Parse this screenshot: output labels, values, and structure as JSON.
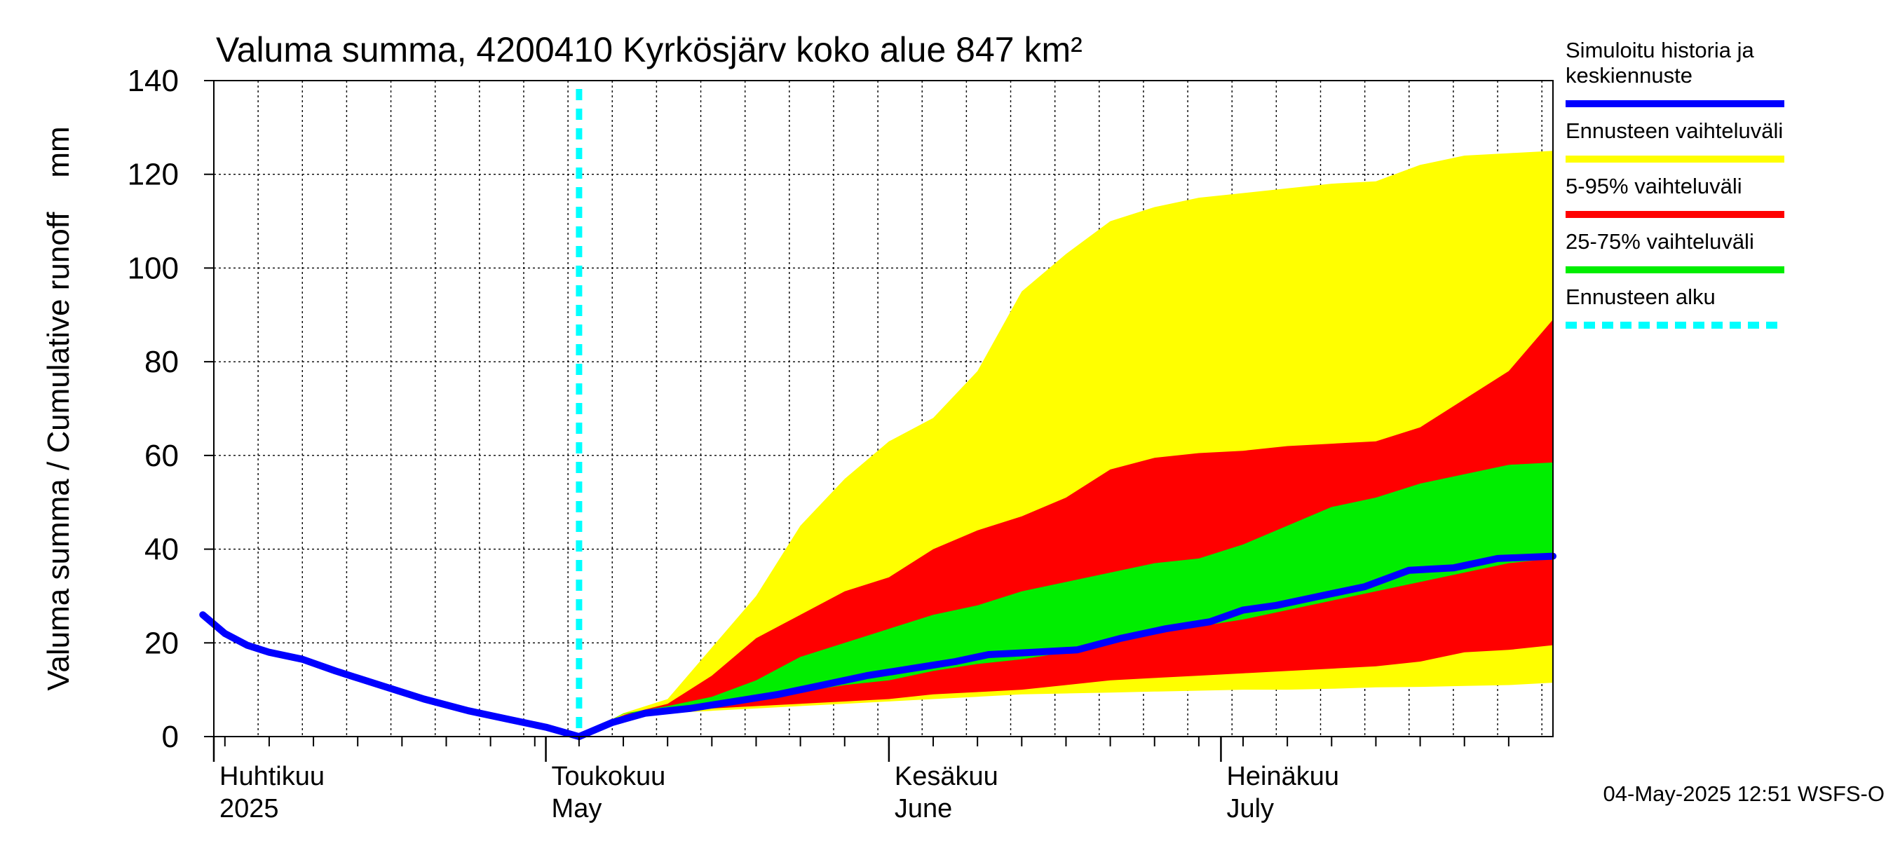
{
  "chart_data": {
    "type": "area",
    "title": "Valuma summa, 4200410 Kyrkösjärv koko alue 847 km²",
    "ylabel": "Valuma summa / Cumulative runoff    mm",
    "xlabel": "",
    "ylim": [
      0,
      140
    ],
    "yticks": [
      0,
      20,
      40,
      60,
      80,
      100,
      120,
      140
    ],
    "y_tick_labels": [
      "0",
      "20",
      "40",
      "60",
      "80",
      "100",
      "120",
      "140"
    ],
    "x_range": [
      "2025-04-01",
      "2025-07-31"
    ],
    "grid": true,
    "legend_placement": "right",
    "months": [
      {
        "date": "2025-04-01",
        "fi": "Huhtikuu",
        "en": "2025"
      },
      {
        "date": "2025-05-01",
        "fi": "Toukokuu",
        "en": "May"
      },
      {
        "date": "2025-06-01",
        "fi": "Kesäkuu",
        "en": "June"
      },
      {
        "date": "2025-07-01",
        "fi": "Heinäkuu",
        "en": "July"
      }
    ],
    "forecast_start": "2025-05-04",
    "legend": [
      {
        "key": "history",
        "label": "Simuloitu historia ja keskiennuste",
        "lines": [
          "Simuloitu historia ja",
          "keskiennuste"
        ],
        "color": "#0000ff",
        "style": "solid"
      },
      {
        "key": "full_range",
        "label": "Ennusteen vaihteluväli",
        "lines": [
          "Ennusteen vaihteluväli"
        ],
        "color": "#ffff00",
        "style": "solid"
      },
      {
        "key": "p5_95",
        "label": "5-95% vaihteluväli",
        "lines": [
          "5-95% vaihteluväli"
        ],
        "color": "#ff0000",
        "style": "solid"
      },
      {
        "key": "p25_75",
        "label": "25-75% vaihteluväli",
        "lines": [
          "25-75% vaihteluväli"
        ],
        "color": "#00ee00",
        "style": "solid"
      },
      {
        "key": "forecast_start",
        "label": "Ennusteen alku",
        "lines": [
          "Ennusteen alku"
        ],
        "color": "#00ffff",
        "style": "dashed"
      }
    ],
    "series": [
      {
        "key": "history",
        "x": [
          "2025-03-31",
          "2025-04-02",
          "2025-04-04",
          "2025-04-06",
          "2025-04-09",
          "2025-04-12",
          "2025-04-16",
          "2025-04-20",
          "2025-04-24",
          "2025-04-28",
          "2025-05-01",
          "2025-05-04"
        ],
        "y": [
          26,
          22,
          19.5,
          18,
          16.5,
          14,
          11,
          8,
          5.5,
          3.5,
          2,
          0
        ]
      },
      {
        "key": "median_forecast",
        "x": [
          "2025-05-04",
          "2025-05-07",
          "2025-05-10",
          "2025-05-14",
          "2025-05-18",
          "2025-05-22",
          "2025-05-26",
          "2025-05-30",
          "2025-06-03",
          "2025-06-07",
          "2025-06-10",
          "2025-06-14",
          "2025-06-18",
          "2025-06-22",
          "2025-06-26",
          "2025-06-30",
          "2025-07-03",
          "2025-07-06",
          "2025-07-10",
          "2025-07-14",
          "2025-07-18",
          "2025-07-22",
          "2025-07-26",
          "2025-07-31"
        ],
        "y": [
          0,
          3,
          5,
          6,
          7.5,
          9,
          11,
          13,
          14.5,
          16,
          17.5,
          18,
          18.5,
          21,
          23,
          24.5,
          27,
          28,
          30,
          32,
          35.5,
          36,
          38,
          38.5
        ]
      }
    ],
    "bands": {
      "x": [
        "2025-05-04",
        "2025-05-08",
        "2025-05-12",
        "2025-05-16",
        "2025-05-20",
        "2025-05-24",
        "2025-05-28",
        "2025-06-01",
        "2025-06-05",
        "2025-06-09",
        "2025-06-13",
        "2025-06-17",
        "2025-06-21",
        "2025-06-25",
        "2025-06-29",
        "2025-07-03",
        "2025-07-07",
        "2025-07-11",
        "2025-07-15",
        "2025-07-19",
        "2025-07-23",
        "2025-07-27",
        "2025-07-31"
      ],
      "full_min": [
        0,
        4,
        5,
        5.5,
        6,
        6.5,
        7,
        7.5,
        8,
        8.5,
        9,
        9.2,
        9.4,
        9.6,
        9.8,
        10,
        10,
        10.2,
        10.5,
        10.6,
        10.8,
        11,
        11.5
      ],
      "full_max": [
        0,
        5,
        8,
        19,
        30,
        45,
        55,
        63,
        68,
        78,
        95,
        103,
        110,
        113,
        115,
        116,
        117,
        118,
        118.5,
        122,
        124,
        124.5,
        125
      ],
      "p5": [
        0,
        4.5,
        5.5,
        6,
        6.5,
        7,
        7.5,
        8,
        9,
        9.5,
        10,
        11,
        12,
        12.5,
        13,
        13.5,
        14,
        14.5,
        15,
        16,
        18,
        18.5,
        19.5
      ],
      "p95": [
        0,
        4.6,
        7,
        13,
        21,
        26,
        31,
        34,
        40,
        44,
        47,
        51,
        57,
        59.5,
        60.5,
        61,
        62,
        62.5,
        63,
        66,
        72,
        78,
        89
      ],
      "p25": [
        0,
        4.8,
        6,
        7,
        8,
        9.5,
        11,
        12,
        14,
        15.5,
        16.5,
        18,
        20,
        22,
        23.5,
        25,
        27,
        29,
        31,
        33,
        35,
        37,
        38
      ],
      "p75": [
        0,
        4.9,
        6.5,
        8.5,
        12,
        17,
        20,
        23,
        26,
        28,
        31,
        33,
        35,
        37,
        38,
        41,
        45,
        49,
        51,
        54,
        56,
        58,
        58.5
      ]
    }
  },
  "footer": "04-May-2025 12:51 WSFS-O"
}
